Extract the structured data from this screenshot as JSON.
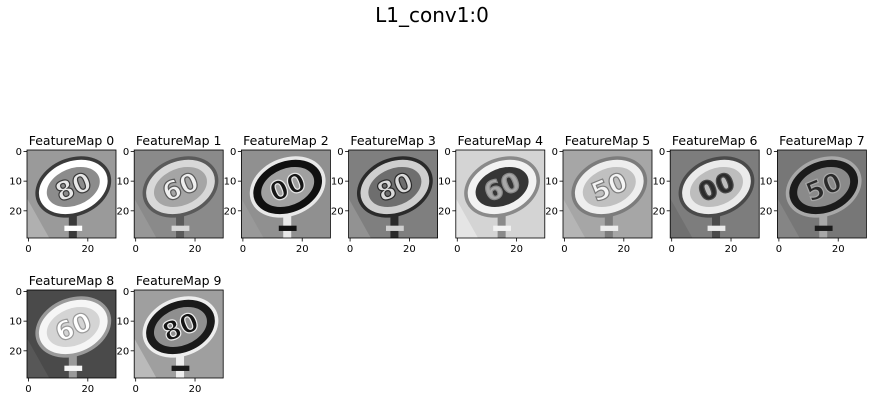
{
  "figure": {
    "title": "L1_conv1:0"
  },
  "chart_data": {
    "type": "heatmap",
    "title": "L1_conv1:0",
    "colormap": "gray",
    "image_size": [
      30,
      30
    ],
    "xticks": [
      0,
      20
    ],
    "yticks": [
      0,
      10,
      20
    ],
    "panels": [
      {
        "title": "FeatureMap 0",
        "label": "80",
        "bg": "#9a9a9a",
        "sign": "#8c8c8c",
        "ring": "#ffffff",
        "ring2": "#3a3a3a",
        "text": "#e8e8e8",
        "corner": "#b9b9b9"
      },
      {
        "title": "FeatureMap 1",
        "label": "60",
        "bg": "#8a8a8a",
        "sign": "#a5a5a5",
        "ring": "#d8d8d8",
        "ring2": "#5a5a5a",
        "text": "#efefef",
        "corner": "#9c9c9c"
      },
      {
        "title": "FeatureMap 2",
        "label": "00",
        "bg": "#909090",
        "sign": "#a0a0a0",
        "ring": "#101010",
        "ring2": "#e8e8e8",
        "text": "#161616",
        "corner": "#9d9d9d"
      },
      {
        "title": "FeatureMap 3",
        "label": "80",
        "bg": "#7f7f7f",
        "sign": "#6e6e6e",
        "ring": "#cfcfcf",
        "ring2": "#2a2a2a",
        "text": "#d9d9d9",
        "corner": "#9a9a9a"
      },
      {
        "title": "FeatureMap 4",
        "label": "60",
        "bg": "#d4d4d4",
        "sign": "#353535",
        "ring": "#f2f2f2",
        "ring2": "#8a8a8a",
        "text": "#a8a8a8",
        "corner": "#ececec"
      },
      {
        "title": "FeatureMap 5",
        "label": "50",
        "bg": "#a6a6a6",
        "sign": "#c0c0c0",
        "ring": "#eeeeee",
        "ring2": "#7c7c7c",
        "text": "#f4f4f4",
        "corner": "#bcbcbc"
      },
      {
        "title": "FeatureMap 6",
        "label": "00",
        "bg": "#7d7d7d",
        "sign": "#bdbdbd",
        "ring": "#ebebeb",
        "ring2": "#4a4a4a",
        "text": "#2c2c2c",
        "corner": "#6b6b6b"
      },
      {
        "title": "FeatureMap 7",
        "label": "50",
        "bg": "#777777",
        "sign": "#8a8a8a",
        "ring": "#1b1b1b",
        "ring2": "#a8a8a8",
        "text": "#2a2a2a",
        "corner": "#8b8b8b"
      },
      {
        "title": "FeatureMap 8",
        "label": "60",
        "bg": "#4a4a4a",
        "sign": "#d4d4d4",
        "ring": "#f6f6f6",
        "ring2": "#9a9a9a",
        "text": "#ffffff",
        "corner": "#5c5c5c"
      },
      {
        "title": "FeatureMap 9",
        "label": "80",
        "bg": "#9f9f9f",
        "sign": "#8f8f8f",
        "ring": "#1a1a1a",
        "ring2": "#eeeeee",
        "text": "#141414",
        "corner": "#c6c6c6"
      }
    ]
  }
}
